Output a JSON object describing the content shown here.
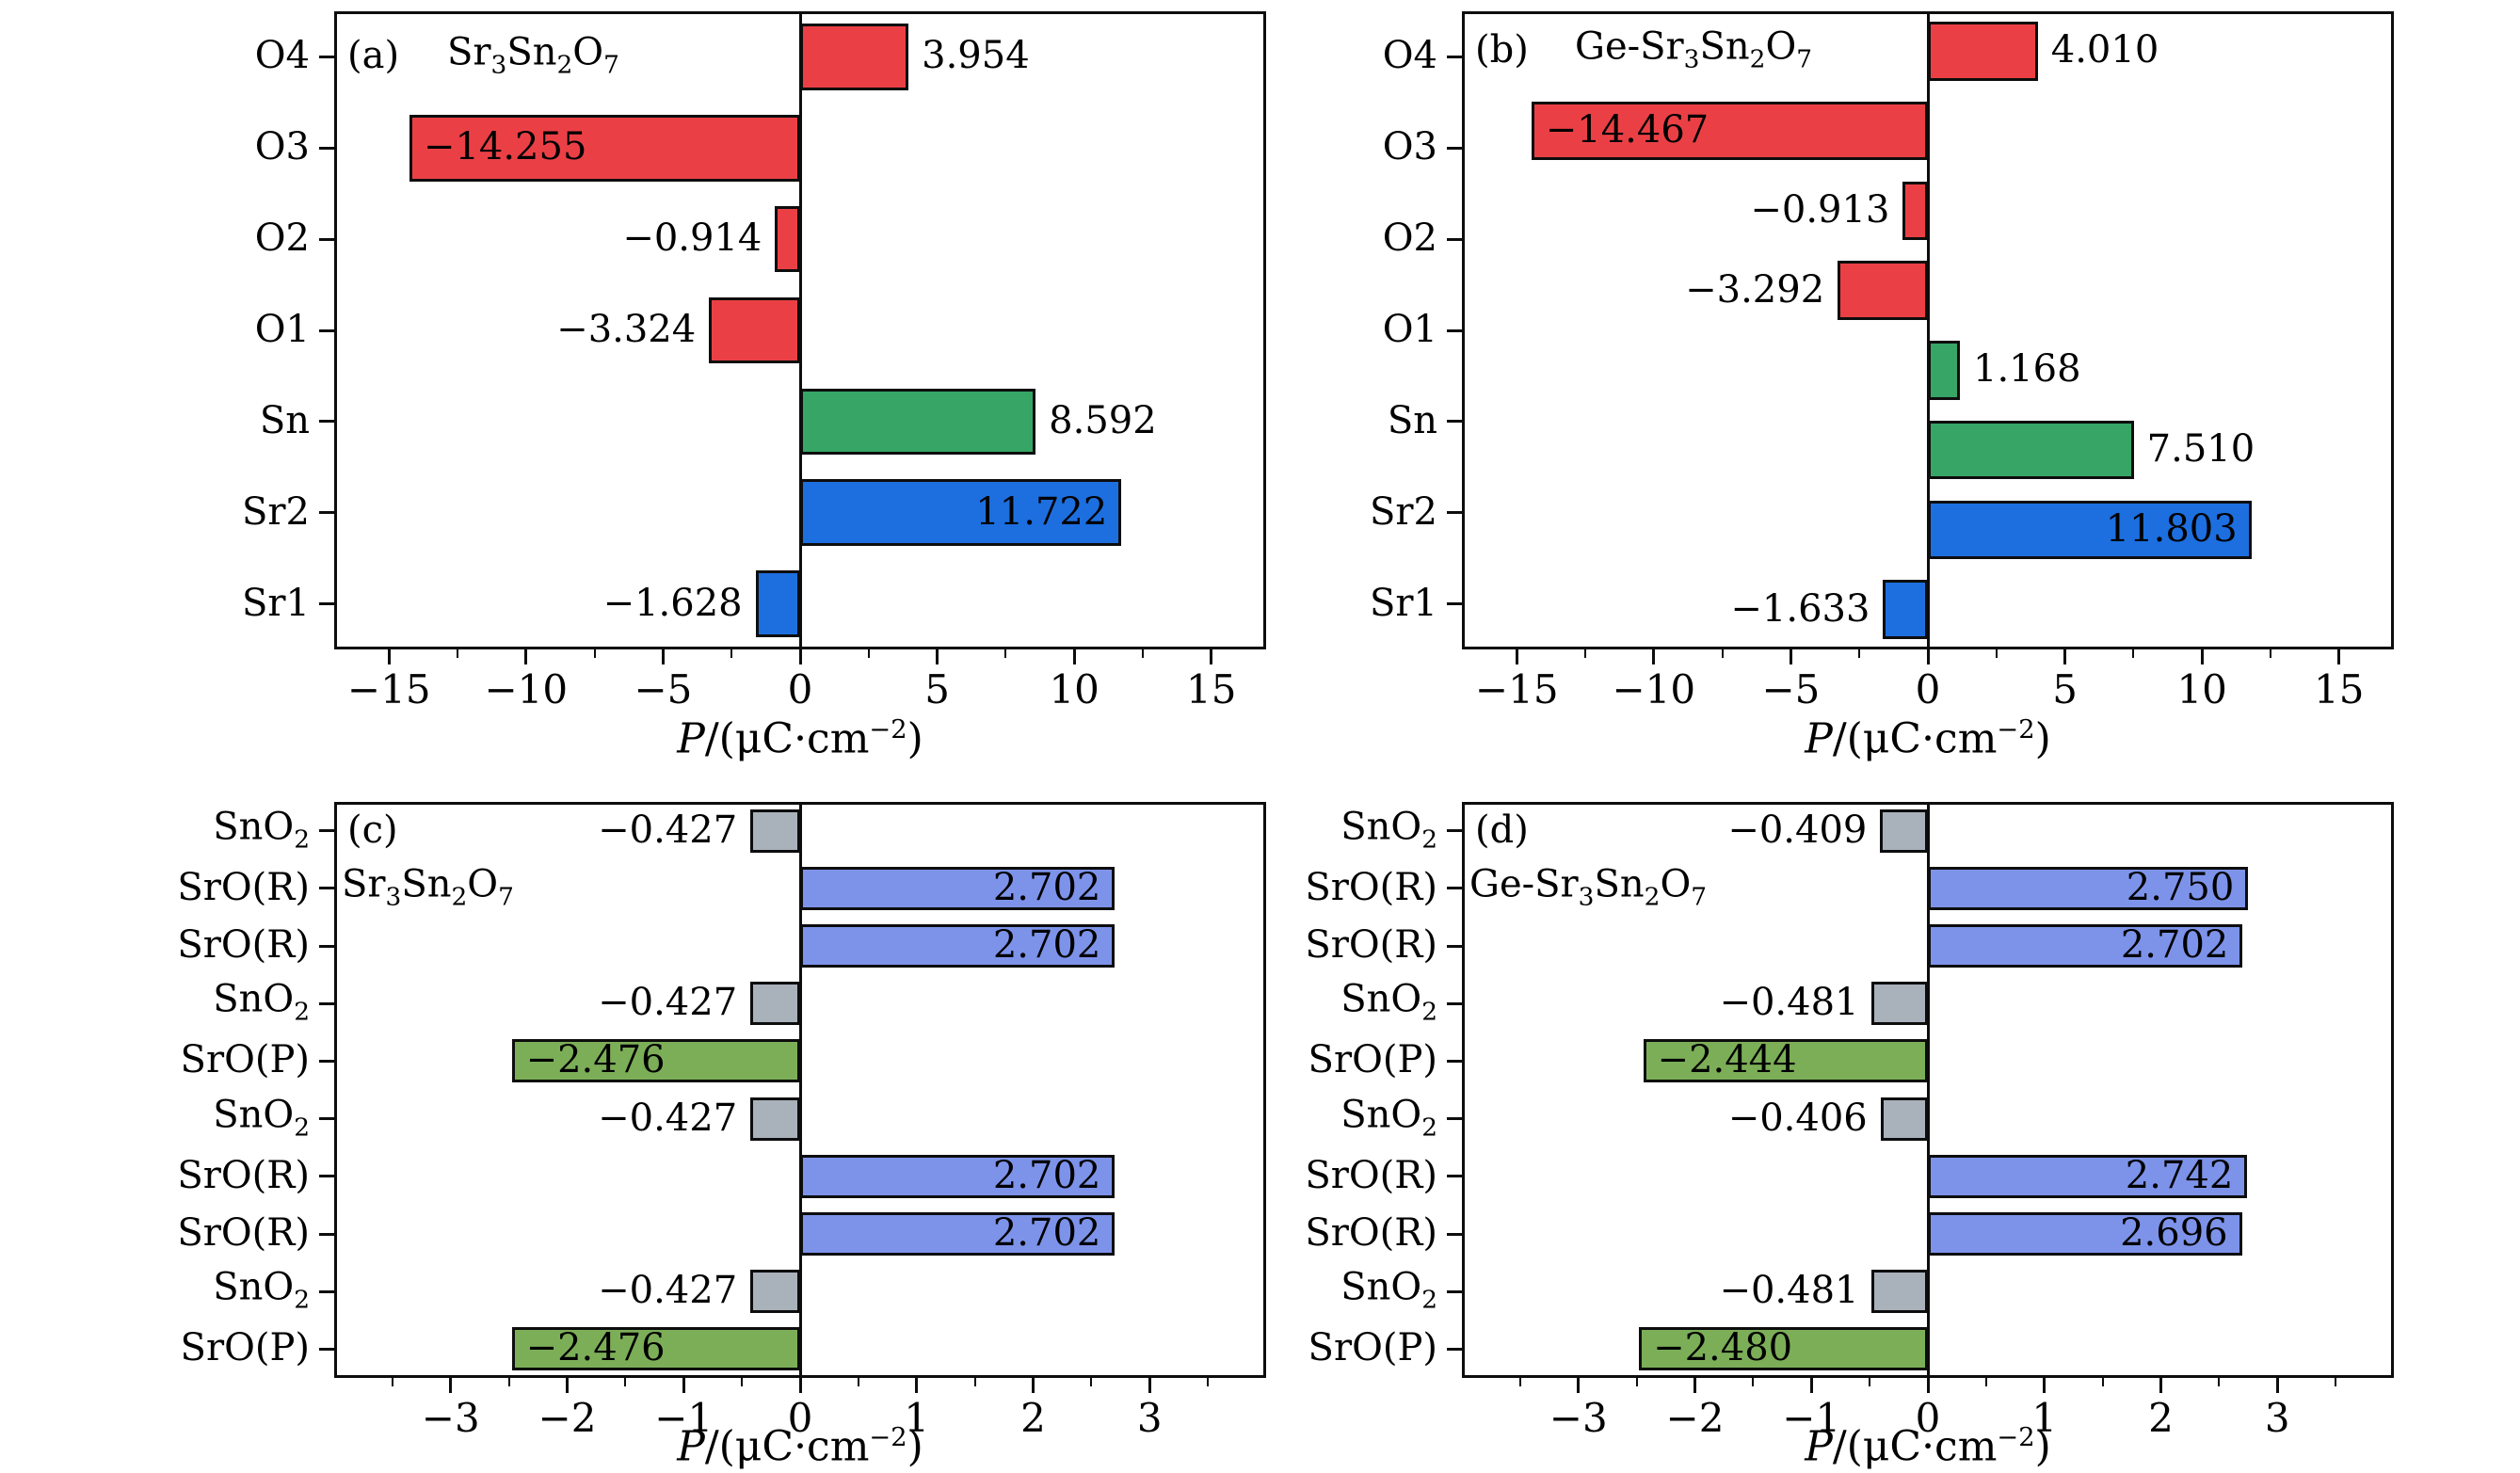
{
  "palette": {
    "red": "#ea4045",
    "green": "#36a566",
    "blue": "#1d6fe0",
    "periwinkle": "#7d93ea",
    "olive": "#7cae58",
    "gray": "#a9b1bb",
    "edge": "#0d0d0d"
  },
  "chart_data": [
    {
      "panel": "a",
      "type": "bar",
      "orientation": "horizontal",
      "tag": "(a)",
      "title": "Sr_3Sn_2O_7",
      "xlabel": {
        "lead": "P",
        "mid": "/(μC·cm",
        "sup": "−2",
        "tail": ")"
      },
      "xlim": [
        -17,
        17
      ],
      "xticks": [
        {
          "v": -15,
          "label": "−15"
        },
        {
          "v": -10,
          "label": "−10"
        },
        {
          "v": -5,
          "label": "−5"
        },
        {
          "v": 0,
          "label": "0"
        },
        {
          "v": 5,
          "label": "5"
        },
        {
          "v": 10,
          "label": "10"
        },
        {
          "v": 15,
          "label": "15"
        }
      ],
      "minor_xticks": [
        -12.5,
        -7.5,
        -2.5,
        2.5,
        7.5,
        12.5
      ],
      "ytick_labels": [
        "O4",
        "O3",
        "O2",
        "O1",
        "Sn",
        "Sr2",
        "Sr1"
      ],
      "bars": [
        {
          "category": "O4",
          "value": 3.954,
          "display": "3.954",
          "color": "red",
          "label_pos": "outside-right"
        },
        {
          "category": "O3",
          "value": -14.255,
          "display": "−14.255",
          "color": "red",
          "label_pos": "inside-left"
        },
        {
          "category": "O2",
          "value": -0.914,
          "display": "−0.914",
          "color": "red",
          "label_pos": "outside-left"
        },
        {
          "category": "O1",
          "value": -3.324,
          "display": "−3.324",
          "color": "red",
          "label_pos": "outside-left"
        },
        {
          "category": "Sn",
          "value": 8.592,
          "display": "8.592",
          "color": "green",
          "label_pos": "outside-right"
        },
        {
          "category": "Sr2",
          "value": 11.722,
          "display": "11.722",
          "color": "blue",
          "label_pos": "inside-right"
        },
        {
          "category": "Sr1",
          "value": -1.628,
          "display": "−1.628",
          "color": "blue",
          "label_pos": "outside-left"
        }
      ]
    },
    {
      "panel": "b",
      "type": "bar",
      "orientation": "horizontal",
      "tag": "(b)",
      "title": "Ge-Sr_3Sn_2O_7",
      "xlabel": {
        "lead": "P",
        "mid": "/(μC·cm",
        "sup": "−2",
        "tail": ")"
      },
      "xlim": [
        -17,
        17
      ],
      "xticks": [
        {
          "v": -15,
          "label": "−15"
        },
        {
          "v": -10,
          "label": "−10"
        },
        {
          "v": -5,
          "label": "−5"
        },
        {
          "v": 0,
          "label": "0"
        },
        {
          "v": 5,
          "label": "5"
        },
        {
          "v": 10,
          "label": "10"
        },
        {
          "v": 15,
          "label": "15"
        }
      ],
      "minor_xticks": [
        -12.5,
        -7.5,
        -2.5,
        2.5,
        7.5,
        12.5
      ],
      "ytick_labels": [
        "O4",
        "O3",
        "O2",
        "O1",
        "Sn",
        "Sr2",
        "Sr1"
      ],
      "bars": [
        {
          "category": "O4",
          "value": 4.01,
          "display": "4.010",
          "color": "red",
          "label_pos": "outside-right"
        },
        {
          "category": "O3",
          "value": -14.467,
          "display": "−14.467",
          "color": "red",
          "label_pos": "inside-left"
        },
        {
          "category": "O2",
          "value": -0.913,
          "display": "−0.913",
          "color": "red",
          "label_pos": "outside-left"
        },
        {
          "category": "O1",
          "value": -3.292,
          "display": "−3.292",
          "color": "red",
          "label_pos": "outside-left"
        },
        {
          "category": "",
          "value": 1.168,
          "display": "1.168",
          "color": "green",
          "label_pos": "outside-right"
        },
        {
          "category": "Sn",
          "value": 7.51,
          "display": "7.510",
          "color": "green",
          "label_pos": "outside-right"
        },
        {
          "category": "Sr2",
          "value": 11.803,
          "display": "11.803",
          "color": "blue",
          "label_pos": "inside-right"
        },
        {
          "category": "Sr1",
          "value": -1.633,
          "display": "−1.633",
          "color": "blue",
          "label_pos": "outside-left"
        }
      ]
    },
    {
      "panel": "c",
      "type": "bar",
      "orientation": "horizontal",
      "tag": "(c)",
      "title": "Sr_3Sn_2O_7",
      "xlabel": {
        "lead": "P",
        "mid": "/(μC·cm",
        "sup": "−2",
        "tail": ")"
      },
      "xlim": [
        -4,
        4
      ],
      "xticks": [
        {
          "v": -3,
          "label": "−3"
        },
        {
          "v": -2,
          "label": "−2"
        },
        {
          "v": -1,
          "label": "−1"
        },
        {
          "v": 0,
          "label": "0"
        },
        {
          "v": 1,
          "label": "1"
        },
        {
          "v": 2,
          "label": "2"
        },
        {
          "v": 3,
          "label": "3"
        }
      ],
      "minor_xticks": [
        -3.5,
        -2.5,
        -1.5,
        -0.5,
        0.5,
        1.5,
        2.5,
        3.5
      ],
      "ytick_labels": [
        "SnO_2",
        "SrO(R)",
        "SrO(R)",
        "SnO_2",
        "SrO(P)",
        "SnO_2",
        "SrO(R)",
        "SrO(R)",
        "SnO_2",
        "SrO(P)"
      ],
      "bars": [
        {
          "category": "SnO_2",
          "value": -0.427,
          "display": "−0.427",
          "color": "gray",
          "label_pos": "outside-left"
        },
        {
          "category": "SrO(R)",
          "value": 2.702,
          "display": "2.702",
          "color": "periwinkle",
          "label_pos": "inside-right"
        },
        {
          "category": "SrO(R)",
          "value": 2.702,
          "display": "2.702",
          "color": "periwinkle",
          "label_pos": "inside-right"
        },
        {
          "category": "SnO_2",
          "value": -0.427,
          "display": "−0.427",
          "color": "gray",
          "label_pos": "outside-left"
        },
        {
          "category": "SrO(P)",
          "value": -2.476,
          "display": "−2.476",
          "color": "olive",
          "label_pos": "inside-left"
        },
        {
          "category": "SnO_2",
          "value": -0.427,
          "display": "−0.427",
          "color": "gray",
          "label_pos": "outside-left"
        },
        {
          "category": "SrO(R)",
          "value": 2.702,
          "display": "2.702",
          "color": "periwinkle",
          "label_pos": "inside-right"
        },
        {
          "category": "SrO(R)",
          "value": 2.702,
          "display": "2.702",
          "color": "periwinkle",
          "label_pos": "inside-right"
        },
        {
          "category": "SnO_2",
          "value": -0.427,
          "display": "−0.427",
          "color": "gray",
          "label_pos": "outside-left"
        },
        {
          "category": "SrO(P)",
          "value": -2.476,
          "display": "−2.476",
          "color": "olive",
          "label_pos": "inside-left"
        }
      ]
    },
    {
      "panel": "d",
      "type": "bar",
      "orientation": "horizontal",
      "tag": "(d)",
      "title": "Ge-Sr_3Sn_2O_7",
      "xlabel": {
        "lead": "P",
        "mid": "/(μC·cm",
        "sup": "−2",
        "tail": ")"
      },
      "xlim": [
        -4,
        4
      ],
      "xticks": [
        {
          "v": -3,
          "label": "−3"
        },
        {
          "v": -2,
          "label": "−2"
        },
        {
          "v": -1,
          "label": "−1"
        },
        {
          "v": 0,
          "label": "0"
        },
        {
          "v": 1,
          "label": "1"
        },
        {
          "v": 2,
          "label": "2"
        },
        {
          "v": 3,
          "label": "3"
        }
      ],
      "minor_xticks": [
        -3.5,
        -2.5,
        -1.5,
        -0.5,
        0.5,
        1.5,
        2.5,
        3.5
      ],
      "ytick_labels": [
        "SnO_2",
        "SrO(R)",
        "SrO(R)",
        "SnO_2",
        "SrO(P)",
        "SnO_2",
        "SrO(R)",
        "SrO(R)",
        "SnO_2",
        "SrO(P)"
      ],
      "bars": [
        {
          "category": "SnO_2",
          "value": -0.409,
          "display": "−0.409",
          "color": "gray",
          "label_pos": "outside-left"
        },
        {
          "category": "SrO(R)",
          "value": 2.75,
          "display": "2.750",
          "color": "periwinkle",
          "label_pos": "inside-right"
        },
        {
          "category": "SrO(R)",
          "value": 2.702,
          "display": "2.702",
          "color": "periwinkle",
          "label_pos": "inside-right"
        },
        {
          "category": "SnO_2",
          "value": -0.481,
          "display": "−0.481",
          "color": "gray",
          "label_pos": "outside-left"
        },
        {
          "category": "SrO(P)",
          "value": -2.444,
          "display": "−2.444",
          "color": "olive",
          "label_pos": "inside-left"
        },
        {
          "category": "SnO_2",
          "value": -0.406,
          "display": "−0.406",
          "color": "gray",
          "label_pos": "outside-left"
        },
        {
          "category": "SrO(R)",
          "value": 2.742,
          "display": "2.742",
          "color": "periwinkle",
          "label_pos": "inside-right"
        },
        {
          "category": "SrO(R)",
          "value": 2.696,
          "display": "2.696",
          "color": "periwinkle",
          "label_pos": "inside-right"
        },
        {
          "category": "SnO_2",
          "value": -0.481,
          "display": "−0.481",
          "color": "gray",
          "label_pos": "outside-left"
        },
        {
          "category": "SrO(P)",
          "value": -2.48,
          "display": "−2.480",
          "color": "olive",
          "label_pos": "inside-left"
        }
      ]
    }
  ]
}
